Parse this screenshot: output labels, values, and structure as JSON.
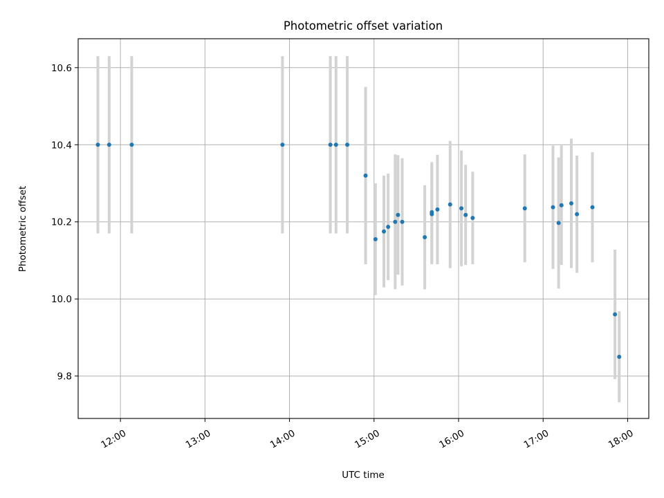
{
  "chart_data": {
    "type": "scatter",
    "title": "Photometric offset variation",
    "xlabel": "UTC time",
    "ylabel": "Photometric offset",
    "x_axis": "time",
    "xlim": [
      "11:30",
      "18:15"
    ],
    "ylim": [
      9.69,
      10.675
    ],
    "x_ticks": [
      "12:00",
      "13:00",
      "14:00",
      "15:00",
      "16:00",
      "17:00",
      "18:00"
    ],
    "y_ticks": [
      "9.8",
      "10.0",
      "10.2",
      "10.4",
      "10.6"
    ],
    "grid": true,
    "marker_color": "#1f77b4",
    "errorbar_color": "#d3d3d3",
    "points": [
      {
        "x": "11:44",
        "y": 10.4,
        "err": 0.23
      },
      {
        "x": "11:52",
        "y": 10.4,
        "err": 0.23
      },
      {
        "x": "12:08",
        "y": 10.4,
        "err": 0.23
      },
      {
        "x": "13:55",
        "y": 10.4,
        "err": 0.23
      },
      {
        "x": "14:29",
        "y": 10.4,
        "err": 0.23
      },
      {
        "x": "14:33",
        "y": 10.4,
        "err": 0.23
      },
      {
        "x": "14:41",
        "y": 10.4,
        "err": 0.23
      },
      {
        "x": "14:54",
        "y": 10.32,
        "err": 0.23
      },
      {
        "x": "15:01",
        "y": 10.155,
        "err": 0.145
      },
      {
        "x": "15:07",
        "y": 10.175,
        "err": 0.145
      },
      {
        "x": "15:10",
        "y": 10.187,
        "err": 0.138
      },
      {
        "x": "15:15",
        "y": 10.2,
        "err": 0.175
      },
      {
        "x": "15:17",
        "y": 10.218,
        "err": 0.155
      },
      {
        "x": "15:20",
        "y": 10.2,
        "err": 0.165
      },
      {
        "x": "15:36",
        "y": 10.16,
        "err": 0.135
      },
      {
        "x": "15:41",
        "y": 10.225,
        "err": 0.13
      },
      {
        "x": "15:41",
        "y": 10.22,
        "err": 0.13
      },
      {
        "x": "15:45",
        "y": 10.232,
        "err": 0.142
      },
      {
        "x": "15:54",
        "y": 10.245,
        "err": 0.165
      },
      {
        "x": "16:02",
        "y": 10.235,
        "err": 0.15
      },
      {
        "x": "16:05",
        "y": 10.218,
        "err": 0.13
      },
      {
        "x": "16:10",
        "y": 10.21,
        "err": 0.12
      },
      {
        "x": "16:47",
        "y": 10.235,
        "err": 0.14
      },
      {
        "x": "17:07",
        "y": 10.238,
        "err": 0.16
      },
      {
        "x": "17:11",
        "y": 10.197,
        "err": 0.17
      },
      {
        "x": "17:13",
        "y": 10.243,
        "err": 0.155
      },
      {
        "x": "17:20",
        "y": 10.248,
        "err": 0.168
      },
      {
        "x": "17:24",
        "y": 10.22,
        "err": 0.152
      },
      {
        "x": "17:35",
        "y": 10.238,
        "err": 0.143
      },
      {
        "x": "17:51",
        "y": 9.96,
        "err": 0.168
      },
      {
        "x": "17:54",
        "y": 9.85,
        "err": 0.118
      }
    ]
  }
}
